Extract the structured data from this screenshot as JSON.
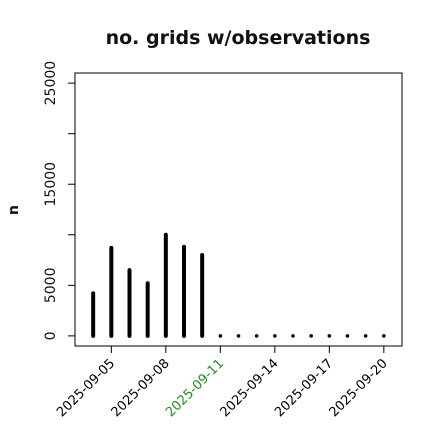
{
  "chart_data": {
    "type": "bar",
    "title": "no. grids w/observations",
    "xlabel": "",
    "ylabel": "n",
    "x": [
      "2025-09-04",
      "2025-09-05",
      "2025-09-06",
      "2025-09-07",
      "2025-09-08",
      "2025-09-09",
      "2025-09-10",
      "2025-09-11",
      "2025-09-12",
      "2025-09-13",
      "2025-09-14",
      "2025-09-15",
      "2025-09-16",
      "2025-09-17",
      "2025-09-18",
      "2025-09-19",
      "2025-09-20"
    ],
    "values": [
      4200,
      8700,
      6500,
      5200,
      10000,
      8800,
      8000,
      0,
      0,
      0,
      0,
      0,
      0,
      0,
      0,
      0,
      0
    ],
    "xlim": [
      "2025-09-03",
      "2025-09-21"
    ],
    "ylim": [
      -1000,
      26000
    ],
    "yticks": [
      0,
      5000,
      15000,
      25000
    ],
    "yticks_unlabeled": [
      10000,
      20000
    ],
    "xticks": [
      {
        "date": "2025-09-05",
        "label": "2025-09-05",
        "color": "#000000"
      },
      {
        "date": "2025-09-08",
        "label": "2025-09-08",
        "color": "#000000"
      },
      {
        "date": "2025-09-11",
        "label": "2025-09-11",
        "color": "#228B22"
      },
      {
        "date": "2025-09-14",
        "label": "2025-09-14",
        "color": "#000000"
      },
      {
        "date": "2025-09-17",
        "label": "2025-09-17",
        "color": "#000000"
      },
      {
        "date": "2025-09-20",
        "label": "2025-09-20",
        "color": "#000000"
      }
    ],
    "grid": false,
    "legend": "none",
    "bar_color": "#000000"
  }
}
